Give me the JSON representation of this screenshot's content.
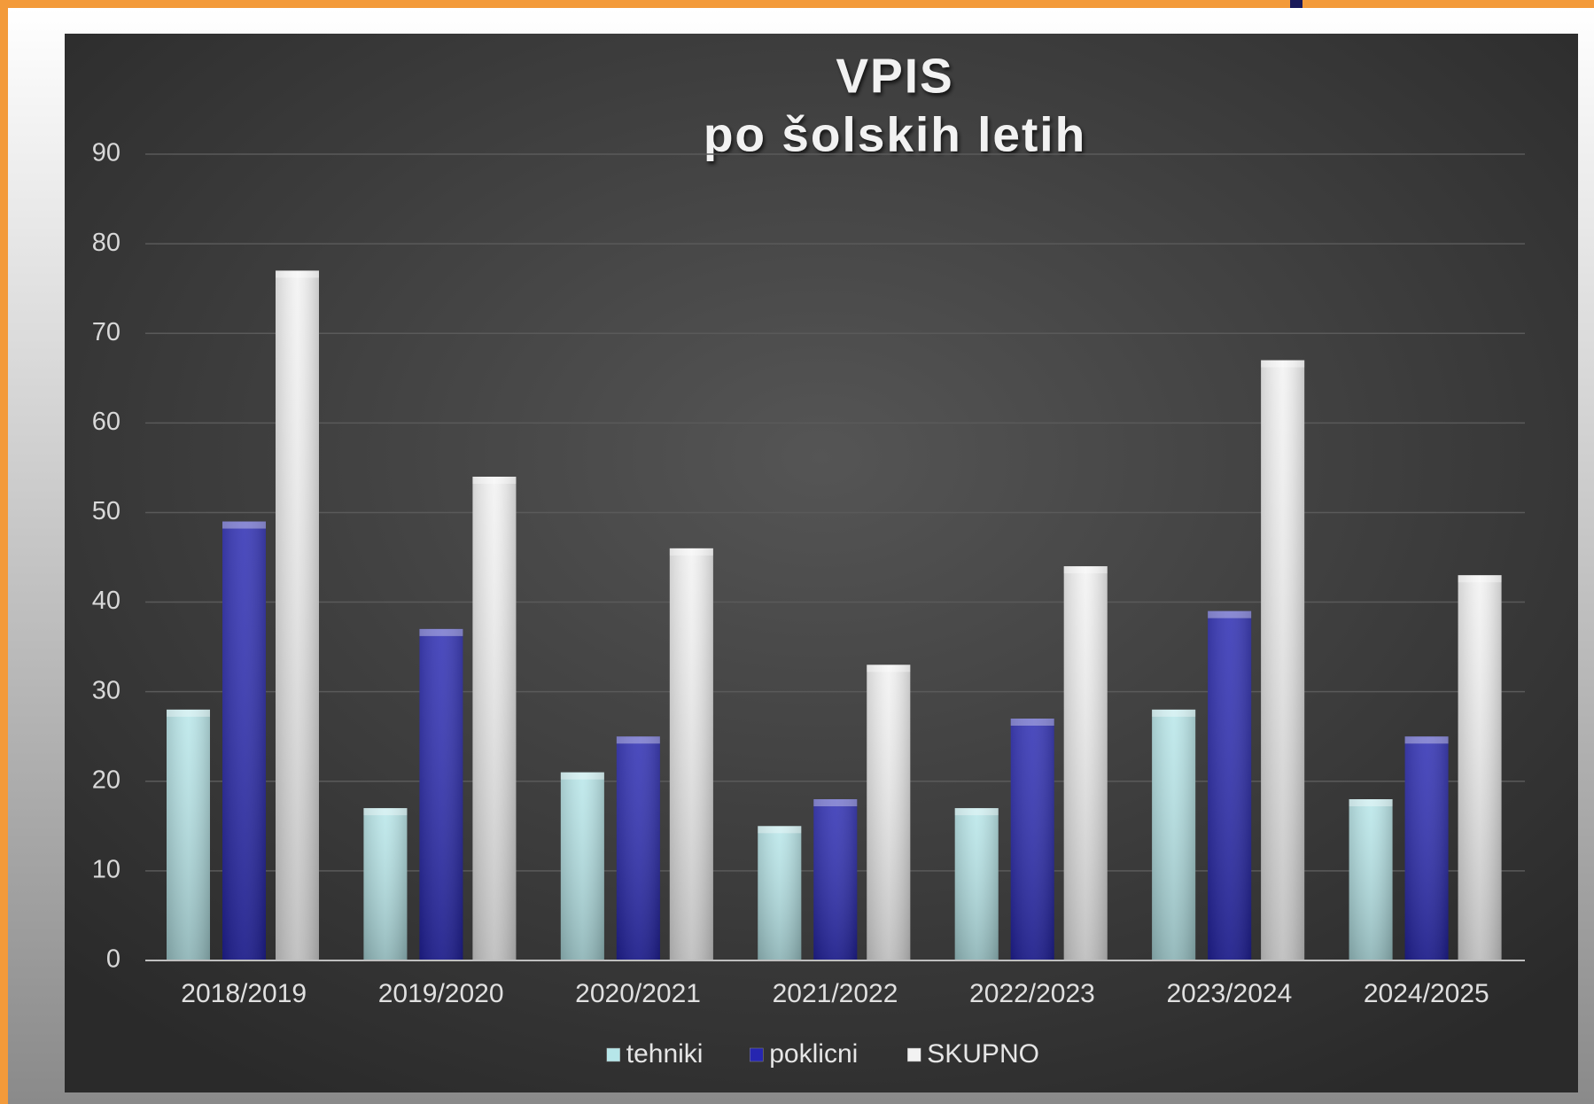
{
  "chart_data": {
    "type": "bar",
    "title": "VPIS",
    "subtitle": "po šolskih letih",
    "categories": [
      "2018/2019",
      "2019/2020",
      "2020/2021",
      "2021/2022",
      "2022/2023",
      "2023/2024",
      "2024/2025"
    ],
    "series": [
      {
        "name": "tehniki",
        "color": "#b6e6e9",
        "values": [
          28,
          17,
          21,
          15,
          17,
          28,
          18
        ]
      },
      {
        "name": "poklicni",
        "color": "#2626b0",
        "values": [
          49,
          37,
          25,
          18,
          27,
          39,
          25
        ]
      },
      {
        "name": "SKUPNO",
        "color": "#f2f2f2",
        "values": [
          77,
          54,
          46,
          33,
          44,
          67,
          43
        ]
      }
    ],
    "ylim": [
      0,
      90
    ],
    "yticks": [
      0,
      10,
      20,
      30,
      40,
      50,
      60,
      70,
      80,
      90
    ],
    "grid": true,
    "legend": "bottom"
  }
}
